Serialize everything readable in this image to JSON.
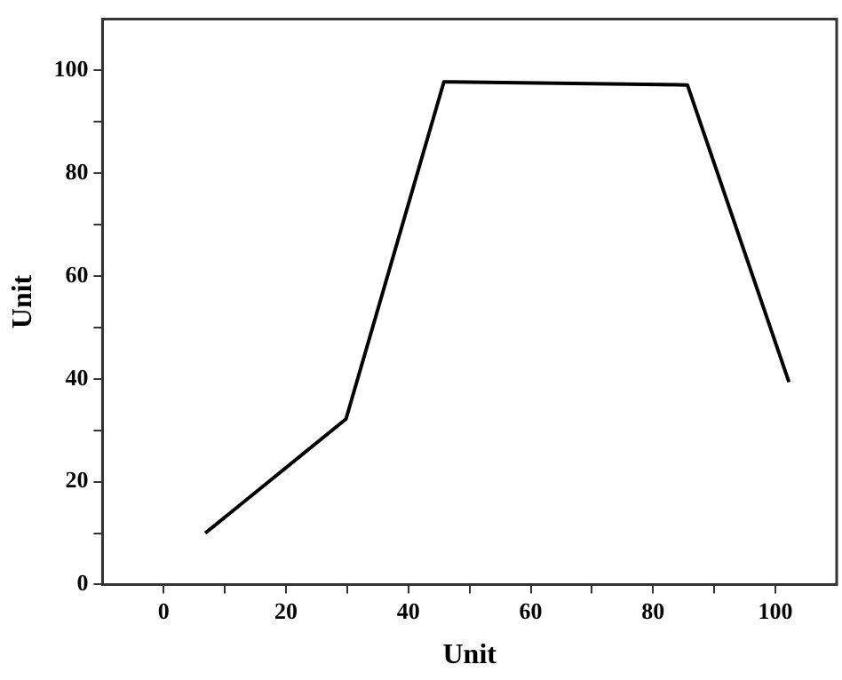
{
  "chart_data": {
    "type": "line",
    "xlabel": "Unit",
    "ylabel": "Unit",
    "x": [
      6.8,
      29.8,
      45.8,
      85.6,
      102.2
    ],
    "series": [
      {
        "color": "#000000",
        "values": [
          10,
          32.2,
          97.8,
          97.2,
          39.4
        ]
      }
    ],
    "xlim": [
      -10,
      110
    ],
    "ylim": [
      0,
      110
    ],
    "xticks": [
      0,
      {
        "value": 10,
        "label": null
      },
      20,
      {
        "value": 30,
        "label": null
      },
      40,
      {
        "value": 50,
        "label": null
      },
      60,
      {
        "value": 70,
        "label": null
      },
      80,
      {
        "value": 90,
        "label": null
      },
      100
    ],
    "yticks": [
      0,
      {
        "value": 10,
        "label": null
      },
      20,
      {
        "value": 30,
        "label": null
      },
      40,
      {
        "value": 50,
        "label": null
      },
      60,
      {
        "value": 70,
        "label": null
      },
      80,
      {
        "value": 90,
        "label": null
      },
      100
    ],
    "grid": false,
    "legend": false,
    "marker": "none",
    "line_style": "solid"
  }
}
